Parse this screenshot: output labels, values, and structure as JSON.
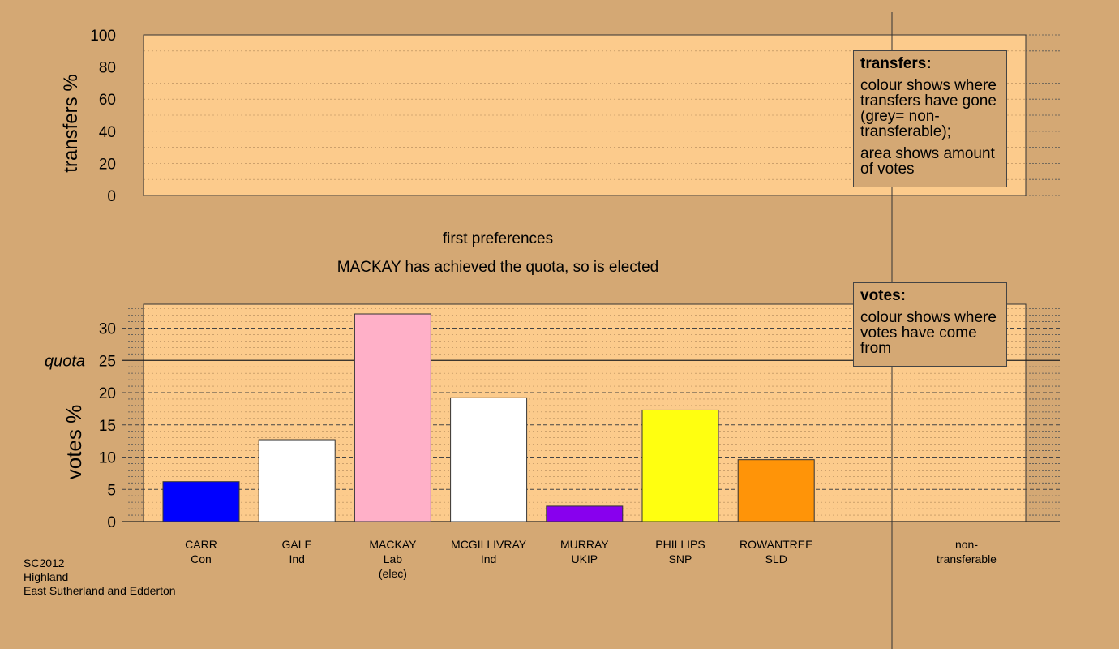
{
  "chart_data": [
    {
      "type": "bar",
      "panel": "transfers",
      "ylabel": "transfers %",
      "ylim": [
        0,
        100
      ],
      "y_ticks": [
        "0",
        "20",
        "40",
        "60",
        "80",
        "100"
      ],
      "series": []
    },
    {
      "type": "bar",
      "panel": "votes",
      "ylabel": "votes %",
      "ylim": [
        0,
        34
      ],
      "y_ticks": [
        "0",
        "5",
        "10",
        "15",
        "20",
        "25",
        "30"
      ],
      "quota": 25,
      "quota_label": "quota",
      "title": "first preferences",
      "subtitle": "MACKAY has achieved the quota, so is elected",
      "categories": [
        {
          "name": "CARR",
          "party": "Con",
          "extra": ""
        },
        {
          "name": "GALE",
          "party": "Ind",
          "extra": ""
        },
        {
          "name": "MACKAY",
          "party": "Lab",
          "extra": "(elec)"
        },
        {
          "name": "MCGILLIVRAY",
          "party": "Ind",
          "extra": ""
        },
        {
          "name": "MURRAY",
          "party": "UKIP",
          "extra": ""
        },
        {
          "name": "PHILLIPS",
          "party": "SNP",
          "extra": ""
        },
        {
          "name": "ROWANTREE",
          "party": "SLD",
          "extra": ""
        }
      ],
      "values": [
        6.2,
        12.7,
        32.2,
        19.2,
        2.4,
        17.3,
        9.6
      ],
      "colors": [
        "#0000ff",
        "#ffffff",
        "#ffb0c8",
        "#ffffff",
        "#8800ee",
        "#ffff10",
        "#ff9408"
      ],
      "nontransferable_label": [
        "non-",
        "transferable"
      ]
    }
  ],
  "legends": {
    "transfers": {
      "title": "transfers:",
      "lines_1": "colour shows where transfers have gone (grey= non-transferable);",
      "lines_2": "area shows amount of votes"
    },
    "votes": {
      "title": "votes:",
      "lines_1": "colour shows where votes have come from"
    }
  },
  "footer": {
    "line1": "SC2012",
    "line2": "Highland",
    "line3": "East Sutherland and Edderton"
  },
  "colors": {
    "background": "#d4a874",
    "plot_area": "#fccb8c"
  }
}
